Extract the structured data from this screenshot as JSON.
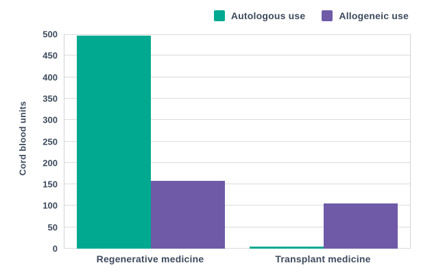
{
  "figure": {
    "background": "#ffffff",
    "text_color": "#3d4a5c",
    "gridline_color": "#d9dbdd",
    "axis_line_color": "#cfd3d6"
  },
  "chart_data": {
    "type": "bar",
    "title": "",
    "xlabel": "",
    "ylabel": "Cord blood units",
    "categories": [
      "Regenerative medicine",
      "Transplant medicine"
    ],
    "series": [
      {
        "name": "Autologous use",
        "color": "#00a990",
        "values": [
          497,
          5
        ]
      },
      {
        "name": "Allogeneic use",
        "color": "#6f5aa8",
        "values": [
          158,
          105
        ]
      }
    ],
    "ylim": [
      0,
      500
    ],
    "yticks": [
      0,
      50,
      100,
      150,
      200,
      250,
      300,
      350,
      400,
      450,
      500
    ],
    "grid": "horizontal",
    "legend_position": "top-right"
  }
}
